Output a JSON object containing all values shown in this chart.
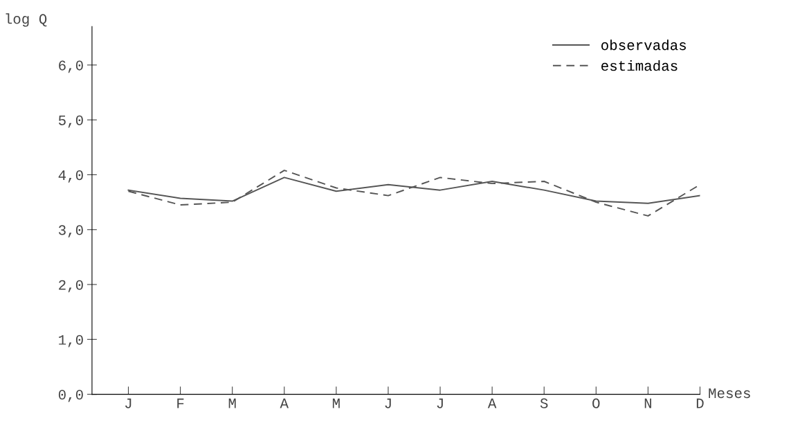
{
  "chart_data": {
    "type": "line",
    "ylabel": "log Q",
    "xlabel": "Meses",
    "categories": [
      "J",
      "F",
      "M",
      "A",
      "M",
      "J",
      "J",
      "A",
      "S",
      "O",
      "N",
      "D"
    ],
    "series": [
      {
        "name": "observadas",
        "color": "#555555",
        "line_style": "solid",
        "values": [
          3.72,
          3.57,
          3.52,
          3.95,
          3.7,
          3.82,
          3.72,
          3.88,
          3.72,
          3.52,
          3.48,
          3.62
        ]
      },
      {
        "name": "estimadas",
        "color": "#555555",
        "line_style": "dashed",
        "values": [
          3.7,
          3.45,
          3.5,
          4.08,
          3.76,
          3.62,
          3.95,
          3.84,
          3.88,
          3.5,
          3.25,
          3.82
        ]
      }
    ],
    "ylim": [
      0,
      6.7
    ],
    "yticks": [
      {
        "value": 0,
        "label": "0,0"
      },
      {
        "value": 1,
        "label": "1,0"
      },
      {
        "value": 2,
        "label": "2,0"
      },
      {
        "value": 3,
        "label": "3,0"
      },
      {
        "value": 4,
        "label": "4,0"
      },
      {
        "value": 5,
        "label": "5,0"
      },
      {
        "value": 6,
        "label": "6,0"
      }
    ],
    "grid": false,
    "legend": "top right",
    "marker": "none"
  }
}
